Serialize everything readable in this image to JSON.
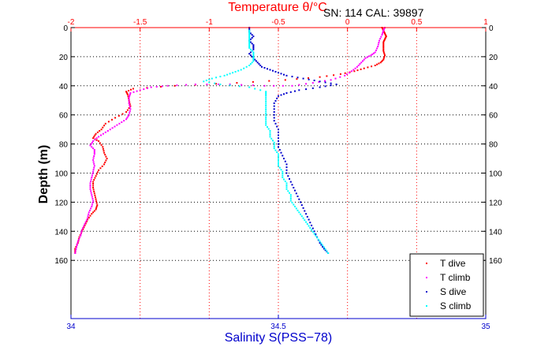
{
  "chart_data": {
    "type": "scatter",
    "header_label": "SN: 114  CAL: 39897",
    "y_axis": {
      "label": "Depth (m)",
      "range": [
        0,
        200
      ],
      "reversed": true,
      "ticks": [
        0,
        20,
        40,
        60,
        80,
        100,
        120,
        140,
        160
      ],
      "tick_labels": [
        "0",
        "20",
        "40",
        "60",
        "80",
        "100",
        "120",
        "140",
        "160"
      ]
    },
    "x_axis_top": {
      "label": "Temperature θ/°C",
      "range": [
        -2,
        1
      ],
      "ticks": [
        -2,
        -1.5,
        -1,
        -0.5,
        0,
        0.5,
        1
      ],
      "tick_labels": [
        "-2",
        "-1.5",
        "-1",
        "-0.5",
        "0",
        "0.5",
        "1"
      ]
    },
    "x_axis_bottom": {
      "label": "Salinity S(PSS−78)",
      "range": [
        34,
        35
      ],
      "ticks": [
        34,
        34.5,
        35
      ],
      "tick_labels": [
        "34",
        "34.5",
        "35"
      ]
    },
    "grid": true,
    "legend_position": "bottom-right",
    "series": [
      {
        "name": "T dive",
        "axis": "temperature",
        "color": "#ff0000",
        "points": [
          [
            0.25,
            0
          ],
          [
            0.26,
            2
          ],
          [
            0.27,
            4
          ],
          [
            0.28,
            6
          ],
          [
            0.27,
            8
          ],
          [
            0.26,
            10
          ],
          [
            0.26,
            13
          ],
          [
            0.26,
            16
          ],
          [
            0.27,
            19
          ],
          [
            0.26,
            22
          ],
          [
            0.24,
            24
          ],
          [
            0.2,
            26
          ],
          [
            0.12,
            28
          ],
          [
            0.05,
            30
          ],
          [
            -0.05,
            32
          ],
          [
            -0.2,
            34
          ],
          [
            -0.45,
            36
          ],
          [
            -0.8,
            38
          ],
          [
            -1.25,
            40
          ],
          [
            -1.55,
            42
          ],
          [
            -1.6,
            44
          ],
          [
            -1.59,
            46
          ],
          [
            -1.58,
            50
          ],
          [
            -1.57,
            54
          ],
          [
            -1.6,
            58
          ],
          [
            -1.68,
            62
          ],
          [
            -1.75,
            66
          ],
          [
            -1.78,
            70
          ],
          [
            -1.82,
            73
          ],
          [
            -1.84,
            76
          ],
          [
            -1.8,
            78
          ],
          [
            -1.77,
            82
          ],
          [
            -1.76,
            86
          ],
          [
            -1.74,
            90
          ],
          [
            -1.76,
            94
          ],
          [
            -1.8,
            98
          ],
          [
            -1.82,
            102
          ],
          [
            -1.84,
            106
          ],
          [
            -1.84,
            110
          ],
          [
            -1.83,
            114
          ],
          [
            -1.82,
            118
          ],
          [
            -1.81,
            122
          ],
          [
            -1.82,
            125
          ],
          [
            -1.85,
            128
          ],
          [
            -1.88,
            132
          ],
          [
            -1.9,
            136
          ],
          [
            -1.92,
            140
          ],
          [
            -1.94,
            144
          ],
          [
            -1.95,
            148
          ],
          [
            -1.97,
            152
          ],
          [
            -1.97,
            155
          ]
        ]
      },
      {
        "name": "T climb",
        "axis": "temperature",
        "color": "#ff00ff",
        "points": [
          [
            -1.97,
            155
          ],
          [
            -1.96,
            151
          ],
          [
            -1.95,
            147
          ],
          [
            -1.93,
            143
          ],
          [
            -1.92,
            139
          ],
          [
            -1.9,
            135
          ],
          [
            -1.88,
            131
          ],
          [
            -1.87,
            127
          ],
          [
            -1.85,
            123
          ],
          [
            -1.84,
            119
          ],
          [
            -1.85,
            115
          ],
          [
            -1.86,
            111
          ],
          [
            -1.86,
            107
          ],
          [
            -1.85,
            103
          ],
          [
            -1.84,
            99
          ],
          [
            -1.83,
            95
          ],
          [
            -1.84,
            91
          ],
          [
            -1.83,
            87
          ],
          [
            -1.83,
            84
          ],
          [
            -1.86,
            81
          ],
          [
            -1.84,
            78
          ],
          [
            -1.8,
            75
          ],
          [
            -1.75,
            72
          ],
          [
            -1.7,
            69
          ],
          [
            -1.65,
            66
          ],
          [
            -1.6,
            63
          ],
          [
            -1.58,
            60
          ],
          [
            -1.57,
            56
          ],
          [
            -1.58,
            52
          ],
          [
            -1.58,
            48
          ],
          [
            -1.57,
            45
          ],
          [
            -1.5,
            43
          ],
          [
            -1.42,
            41
          ],
          [
            -1.3,
            40
          ],
          [
            -1.1,
            39
          ],
          [
            -0.85,
            39
          ],
          [
            -0.6,
            40
          ],
          [
            -0.4,
            40
          ],
          [
            -0.25,
            38
          ],
          [
            -0.12,
            36
          ],
          [
            -0.02,
            33
          ],
          [
            0.03,
            30
          ],
          [
            0.07,
            27
          ],
          [
            0.1,
            24
          ],
          [
            0.13,
            21
          ],
          [
            0.17,
            19
          ],
          [
            0.2,
            17
          ],
          [
            0.22,
            13
          ],
          [
            0.23,
            9
          ],
          [
            0.25,
            5
          ],
          [
            0.26,
            2
          ],
          [
            0.27,
            0
          ]
        ]
      },
      {
        "name": "S dive",
        "axis": "salinity",
        "color": "#0000cc",
        "points": [
          [
            34.43,
            0
          ],
          [
            34.43,
            3
          ],
          [
            34.44,
            6
          ],
          [
            34.43,
            9
          ],
          [
            34.44,
            12
          ],
          [
            34.44,
            15
          ],
          [
            34.43,
            18
          ],
          [
            34.44,
            21
          ],
          [
            34.45,
            24
          ],
          [
            34.46,
            27
          ],
          [
            34.48,
            29
          ],
          [
            34.5,
            31
          ],
          [
            34.52,
            33
          ],
          [
            34.56,
            35
          ],
          [
            34.6,
            37
          ],
          [
            34.64,
            39
          ],
          [
            34.6,
            41
          ],
          [
            34.55,
            43
          ],
          [
            34.52,
            45
          ],
          [
            34.5,
            47
          ],
          [
            34.49,
            52
          ],
          [
            34.49,
            58
          ],
          [
            34.49,
            64
          ],
          [
            34.5,
            70
          ],
          [
            34.5,
            76
          ],
          [
            34.5,
            82
          ],
          [
            34.51,
            88
          ],
          [
            34.52,
            94
          ],
          [
            34.52,
            100
          ],
          [
            34.53,
            106
          ],
          [
            34.54,
            112
          ],
          [
            34.55,
            118
          ],
          [
            34.56,
            124
          ],
          [
            34.57,
            130
          ],
          [
            34.58,
            136
          ],
          [
            34.59,
            142
          ],
          [
            34.6,
            148
          ],
          [
            34.61,
            152
          ],
          [
            34.62,
            155
          ]
        ]
      },
      {
        "name": "S climb",
        "axis": "salinity",
        "color": "#00ffff",
        "points": [
          [
            34.62,
            155
          ],
          [
            34.61,
            151
          ],
          [
            34.6,
            147
          ],
          [
            34.59,
            143
          ],
          [
            34.58,
            139
          ],
          [
            34.57,
            135
          ],
          [
            34.56,
            131
          ],
          [
            34.55,
            127
          ],
          [
            34.54,
            123
          ],
          [
            34.53,
            119
          ],
          [
            34.53,
            115
          ],
          [
            34.52,
            111
          ],
          [
            34.52,
            107
          ],
          [
            34.51,
            103
          ],
          [
            34.51,
            99
          ],
          [
            34.5,
            95
          ],
          [
            34.5,
            91
          ],
          [
            34.5,
            87
          ],
          [
            34.49,
            83
          ],
          [
            34.49,
            79
          ],
          [
            34.48,
            75
          ],
          [
            34.48,
            71
          ],
          [
            34.47,
            67
          ],
          [
            34.47,
            63
          ],
          [
            34.47,
            59
          ],
          [
            34.47,
            55
          ],
          [
            34.47,
            51
          ],
          [
            34.47,
            47
          ],
          [
            34.47,
            44
          ],
          [
            34.43,
            41
          ],
          [
            34.36,
            39
          ],
          [
            34.32,
            37
          ],
          [
            34.34,
            35
          ],
          [
            34.37,
            33
          ],
          [
            34.39,
            31
          ],
          [
            34.41,
            29
          ],
          [
            34.43,
            26
          ],
          [
            34.44,
            23
          ],
          [
            34.44,
            20
          ],
          [
            34.44,
            17
          ],
          [
            34.43,
            14
          ],
          [
            34.43,
            11
          ],
          [
            34.43,
            8
          ],
          [
            34.43,
            5
          ],
          [
            34.43,
            2
          ]
        ]
      }
    ]
  }
}
